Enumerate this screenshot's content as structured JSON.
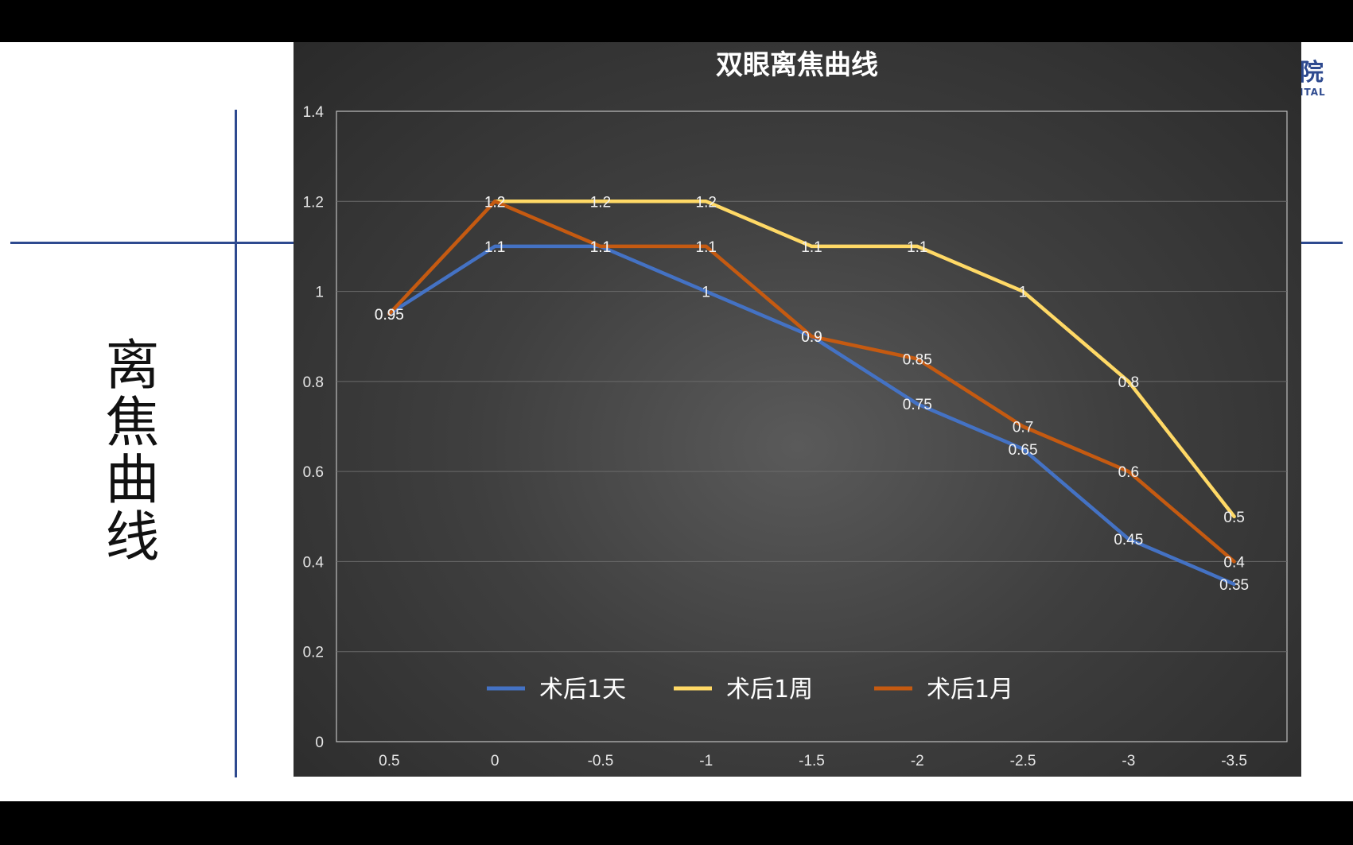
{
  "slide": {
    "side_title": "离焦曲线",
    "logo_char": "院",
    "logo_sub": "ITAL"
  },
  "nav": {
    "prev_icon": "arrow-left-icon",
    "pointer_icon": "pointer-icon",
    "more_icon": "more-icon",
    "next_icon": "arrow-right-icon"
  },
  "colors": {
    "panel_bg": "#3f3f3f",
    "blue": "#4472c4",
    "yellow": "#ffd966",
    "orange": "#c55a11",
    "accent_lines": "#2e4a8f"
  },
  "chart_data": {
    "type": "line",
    "title": "双眼离焦曲线",
    "xlabel": "",
    "ylabel": "",
    "categories": [
      "0.5",
      "0",
      "-0.5",
      "-1",
      "-1.5",
      "-2",
      "-2.5",
      "-3",
      "-3.5"
    ],
    "ylim": [
      0,
      1.4
    ],
    "yticks": [
      "0",
      "0.2",
      "0.4",
      "0.6",
      "0.8",
      "1",
      "1.2",
      "1.4"
    ],
    "grid": true,
    "legend_position": "bottom-inside",
    "series": [
      {
        "name": "术后1天",
        "color": "#4472c4",
        "values": [
          0.95,
          1.1,
          1.1,
          1.0,
          0.9,
          0.75,
          0.65,
          0.45,
          0.35
        ]
      },
      {
        "name": "术后1周",
        "color": "#ffd966",
        "values": [
          null,
          1.2,
          1.2,
          1.2,
          1.1,
          1.1,
          1.0,
          0.8,
          0.5
        ]
      },
      {
        "name": "术后1月",
        "color": "#c55a11",
        "values": [
          0.95,
          1.2,
          1.1,
          1.1,
          0.9,
          0.85,
          0.7,
          0.6,
          0.4
        ]
      }
    ]
  }
}
